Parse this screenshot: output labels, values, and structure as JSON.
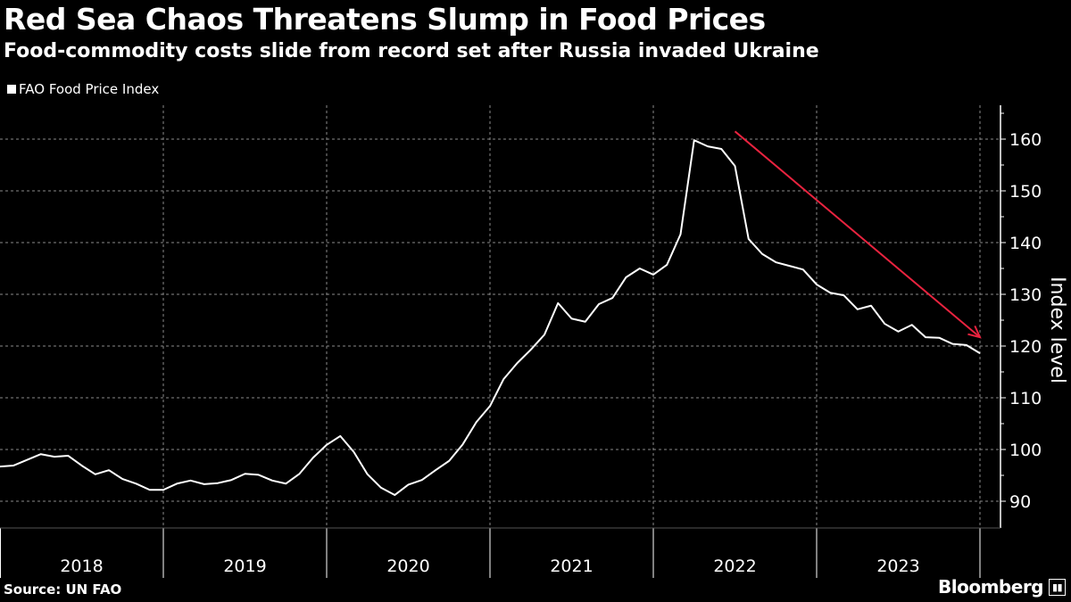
{
  "header": {
    "title": "Red Sea Chaos Threatens Slump in Food Prices",
    "subtitle": "Food-commodity costs slide from record set after Russia invaded Ukraine"
  },
  "footer": {
    "source": "Source: UN FAO",
    "brand": "Bloomberg"
  },
  "chart_data": {
    "type": "line",
    "title": "Red Sea Chaos Threatens Slump in Food Prices",
    "subtitle": "Food-commodity costs slide from record set after Russia invaded Ukraine",
    "ylabel": "Index level",
    "xlabel": "",
    "ylim": [
      85,
      166
    ],
    "yticks": [
      90,
      100,
      110,
      120,
      130,
      140,
      150,
      160
    ],
    "xticks": [
      "2018",
      "2019",
      "2020",
      "2021",
      "2022",
      "2023"
    ],
    "grid": true,
    "legend": "top-left",
    "colors": {
      "line": "#ffffff",
      "arrow": "#e8233f",
      "background": "#000000"
    },
    "series": [
      {
        "name": "FAO Food Price Index",
        "frequency": "monthly",
        "end": "2023-12",
        "values": [
          96.7,
          96.9,
          98.0,
          99.1,
          98.6,
          98.8,
          96.9,
          95.2,
          96.0,
          94.3,
          93.4,
          92.2,
          92.2,
          93.4,
          94.0,
          93.3,
          93.5,
          94.1,
          95.3,
          95.1,
          94.0,
          93.4,
          95.3,
          98.4,
          100.9,
          102.6,
          99.5,
          95.2,
          92.6,
          91.2,
          93.2,
          94.1,
          96.0,
          97.8,
          101.0,
          105.3,
          108.4,
          113.6,
          116.7,
          119.3,
          122.2,
          128.3,
          125.3,
          124.7,
          128.1,
          129.3,
          133.3,
          135.0,
          133.8,
          135.7,
          141.6,
          159.8,
          158.6,
          158.1,
          154.8,
          140.7,
          137.8,
          136.2,
          135.5,
          134.8,
          131.9,
          130.3,
          129.8,
          127.1,
          127.8,
          124.3,
          122.8,
          124.1,
          121.7,
          121.6,
          120.4,
          120.2,
          118.6
        ]
      }
    ],
    "annotations": [
      {
        "type": "arrow",
        "from": {
          "month_index": 54,
          "value": 161.5
        },
        "to": {
          "month_index": 72,
          "value": 121.7
        }
      }
    ]
  }
}
